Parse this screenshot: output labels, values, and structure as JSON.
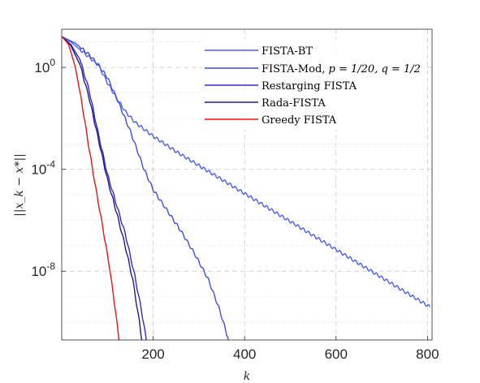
{
  "chart_data": {
    "type": "line",
    "xlabel": "k",
    "ylabel": "||x_k − x*||",
    "x_axis": {
      "min": 0,
      "max": 810,
      "ticks": [
        200,
        400,
        600,
        800
      ],
      "tick_labels": [
        "200",
        "400",
        "600",
        "800"
      ]
    },
    "y_axis": {
      "scale": "log",
      "min_exponent": -10.7,
      "max_exponent": 1.5,
      "ticks": [
        0,
        -4,
        -8
      ],
      "tick_labels": [
        {
          "base": "10",
          "exp": "0"
        },
        {
          "base": "10",
          "exp": "-4"
        },
        {
          "base": "10",
          "exp": "-8"
        }
      ]
    },
    "grid": true,
    "legend_position": "top-right",
    "series": [
      {
        "name": "FISTA-BT",
        "color": "#4a5ef2",
        "points": [
          [
            1,
            1.2
          ],
          [
            20,
            1.0
          ],
          [
            50,
            0.55
          ],
          [
            80,
            0.1
          ],
          [
            100,
            -0.6
          ],
          [
            120,
            -1.2
          ],
          [
            140,
            -1.75
          ],
          [
            160,
            -2.15
          ],
          [
            200,
            -2.7
          ],
          [
            250,
            -3.3
          ],
          [
            300,
            -3.85
          ],
          [
            350,
            -4.4
          ],
          [
            400,
            -4.95
          ],
          [
            450,
            -5.5
          ],
          [
            500,
            -6.05
          ],
          [
            550,
            -6.6
          ],
          [
            600,
            -7.15
          ],
          [
            650,
            -7.7
          ],
          [
            700,
            -8.25
          ],
          [
            750,
            -8.8
          ],
          [
            805,
            -9.4
          ]
        ]
      },
      {
        "name": "FISTA-Mod, p = 1/20, q = 1/2",
        "color": "#3c4ee0",
        "points": [
          [
            1,
            1.2
          ],
          [
            30,
            0.95
          ],
          [
            60,
            0.5
          ],
          [
            80,
            0.1
          ],
          [
            100,
            -0.4
          ],
          [
            120,
            -1.2
          ],
          [
            150,
            -2.5
          ],
          [
            180,
            -4.0
          ],
          [
            200,
            -4.8
          ],
          [
            230,
            -5.6
          ],
          [
            260,
            -6.4
          ],
          [
            290,
            -7.3
          ],
          [
            320,
            -8.3
          ],
          [
            345,
            -9.5
          ],
          [
            365,
            -10.7
          ]
        ]
      },
      {
        "name": "Restarging FISTA",
        "color": "#3426c8",
        "points": [
          [
            1,
            1.2
          ],
          [
            20,
            0.9
          ],
          [
            40,
            0.3
          ],
          [
            60,
            -0.9
          ],
          [
            80,
            -2.6
          ],
          [
            100,
            -4.2
          ],
          [
            120,
            -5.4
          ],
          [
            140,
            -6.6
          ],
          [
            160,
            -8.2
          ],
          [
            175,
            -9.6
          ],
          [
            185,
            -10.7
          ]
        ]
      },
      {
        "name": "Rada-FISTA",
        "color": "#1f1b8f",
        "points": [
          [
            1,
            1.2
          ],
          [
            20,
            0.85
          ],
          [
            40,
            0.1
          ],
          [
            60,
            -1.2
          ],
          [
            80,
            -2.8
          ],
          [
            100,
            -4.4
          ],
          [
            120,
            -5.7
          ],
          [
            140,
            -7.1
          ],
          [
            155,
            -8.3
          ],
          [
            170,
            -10.0
          ],
          [
            175,
            -10.7
          ]
        ]
      },
      {
        "name": "Greedy FISTA",
        "color": "#ee1111",
        "points": [
          [
            1,
            1.2
          ],
          [
            15,
            0.9
          ],
          [
            30,
            0.0
          ],
          [
            45,
            -1.5
          ],
          [
            60,
            -3.2
          ],
          [
            75,
            -4.8
          ],
          [
            90,
            -6.3
          ],
          [
            105,
            -7.9
          ],
          [
            118,
            -9.6
          ],
          [
            125,
            -10.7
          ]
        ]
      }
    ]
  },
  "legend": {
    "entries": [
      {
        "text": "FISTA-BT"
      },
      {
        "prefix": "FISTA-Mod, ",
        "math": "p = 1/20, q = 1/2"
      },
      {
        "text": "Restarging FISTA"
      },
      {
        "text": "Rada-FISTA"
      },
      {
        "text": "Greedy FISTA"
      }
    ]
  }
}
